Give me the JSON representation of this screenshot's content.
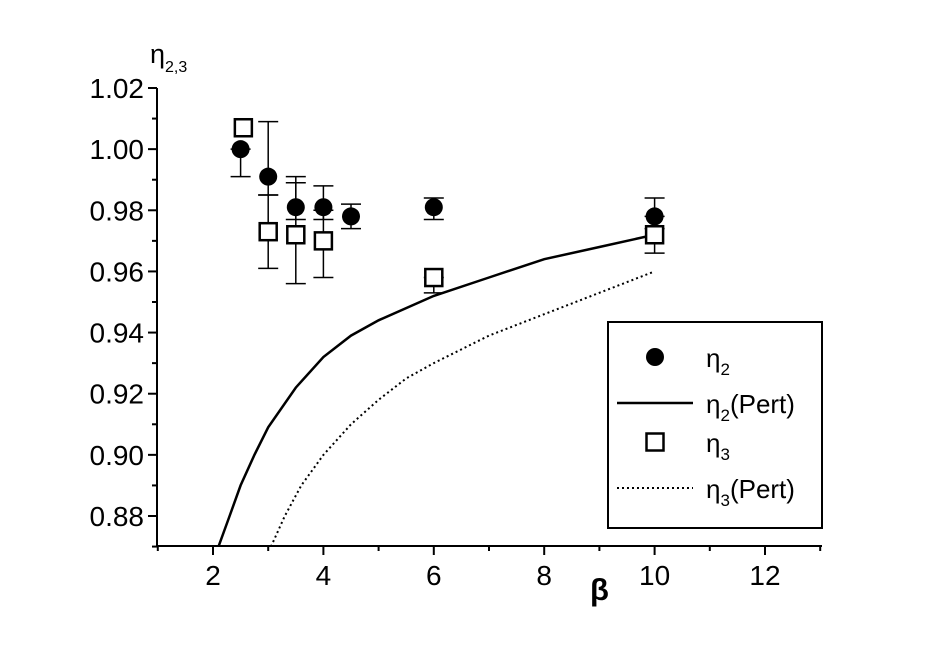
{
  "chart_data": {
    "type": "scatter",
    "ylabel": {
      "base": "η",
      "sub": "2,3"
    },
    "xlabel": "β",
    "xlim": [
      1,
      13
    ],
    "ylim": [
      0.87,
      1.02
    ],
    "xticks": [
      "2",
      "4",
      "6",
      "8",
      "10",
      "12"
    ],
    "yticks": [
      "0.88",
      "0.90",
      "0.92",
      "0.94",
      "0.96",
      "0.98",
      "1.00",
      "1.02"
    ],
    "grid": false,
    "legend_position": "bottom-right",
    "series": [
      {
        "name": "η2",
        "legend": {
          "base": "η",
          "sub": "2",
          "suffix": ""
        },
        "kind": "points",
        "marker": "filled-circle",
        "points": [
          {
            "x": 2.5,
            "y": 1.0,
            "err_lo": 0.991,
            "err_hi": 1.0
          },
          {
            "x": 3.0,
            "y": 0.991,
            "err_lo": 0.985,
            "err_hi": 1.009
          },
          {
            "x": 3.5,
            "y": 0.981,
            "err_lo": 0.977,
            "err_hi": 0.991
          },
          {
            "x": 4.0,
            "y": 0.981,
            "err_lo": 0.977,
            "err_hi": 0.988
          },
          {
            "x": 4.5,
            "y": 0.978,
            "err_lo": 0.974,
            "err_hi": 0.982
          },
          {
            "x": 6.0,
            "y": 0.981,
            "err_lo": 0.977,
            "err_hi": 0.984
          },
          {
            "x": 10.0,
            "y": 0.978,
            "err_lo": 0.974,
            "err_hi": 0.984
          }
        ]
      },
      {
        "name": "η2(Pert)",
        "legend": {
          "base": "η",
          "sub": "2",
          "suffix": "(Pert)"
        },
        "kind": "line",
        "dash": "solid",
        "points": [
          {
            "x": 2.1,
            "y": 0.87
          },
          {
            "x": 2.3,
            "y": 0.88
          },
          {
            "x": 2.5,
            "y": 0.89
          },
          {
            "x": 2.75,
            "y": 0.9
          },
          {
            "x": 3.0,
            "y": 0.909
          },
          {
            "x": 3.5,
            "y": 0.922
          },
          {
            "x": 4.0,
            "y": 0.932
          },
          {
            "x": 4.5,
            "y": 0.939
          },
          {
            "x": 5.0,
            "y": 0.944
          },
          {
            "x": 6.0,
            "y": 0.952
          },
          {
            "x": 7.0,
            "y": 0.958
          },
          {
            "x": 8.0,
            "y": 0.964
          },
          {
            "x": 9.0,
            "y": 0.968
          },
          {
            "x": 10.0,
            "y": 0.972
          }
        ]
      },
      {
        "name": "η3",
        "legend": {
          "base": "η",
          "sub": "3",
          "suffix": ""
        },
        "kind": "points",
        "marker": "open-square",
        "points": [
          {
            "x": 2.55,
            "y": 1.007,
            "err_lo": null,
            "err_hi": null
          },
          {
            "x": 3.0,
            "y": 0.973,
            "err_lo": 0.961,
            "err_hi": 0.985
          },
          {
            "x": 3.5,
            "y": 0.972,
            "err_lo": 0.956,
            "err_hi": 0.989
          },
          {
            "x": 4.0,
            "y": 0.97,
            "err_lo": 0.958,
            "err_hi": 0.98
          },
          {
            "x": 6.0,
            "y": 0.958,
            "err_lo": 0.953,
            "err_hi": 0.958
          },
          {
            "x": 10.0,
            "y": 0.972,
            "err_lo": 0.966,
            "err_hi": 0.978
          }
        ]
      },
      {
        "name": "η3(Pert)",
        "legend": {
          "base": "η",
          "sub": "3",
          "suffix": "(Pert)"
        },
        "kind": "line",
        "dash": "dotted",
        "points": [
          {
            "x": 3.05,
            "y": 0.87
          },
          {
            "x": 3.3,
            "y": 0.88
          },
          {
            "x": 3.6,
            "y": 0.89
          },
          {
            "x": 4.0,
            "y": 0.9
          },
          {
            "x": 4.5,
            "y": 0.91
          },
          {
            "x": 5.0,
            "y": 0.918
          },
          {
            "x": 5.5,
            "y": 0.925
          },
          {
            "x": 6.0,
            "y": 0.93
          },
          {
            "x": 7.0,
            "y": 0.939
          },
          {
            "x": 8.0,
            "y": 0.946
          },
          {
            "x": 9.0,
            "y": 0.953
          },
          {
            "x": 10.0,
            "y": 0.96
          }
        ]
      }
    ]
  }
}
